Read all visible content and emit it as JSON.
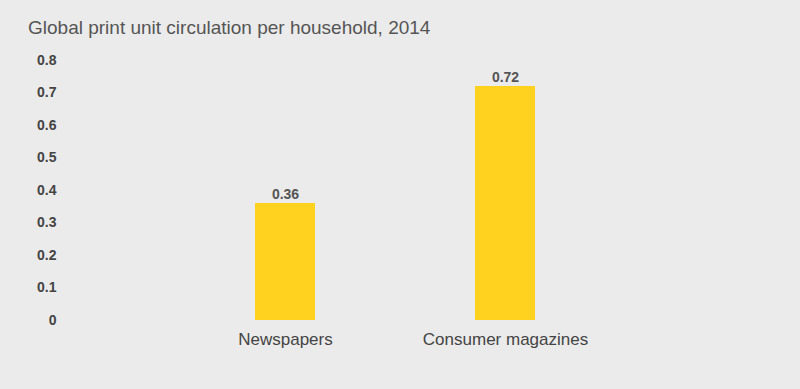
{
  "chart_data": {
    "type": "bar",
    "title": "Global print unit circulation per household, 2014",
    "categories": [
      "Newspapers",
      "Consumer magazines"
    ],
    "values": [
      0.36,
      0.72
    ],
    "color": "#ffd21f",
    "ylim": [
      0,
      0.8
    ],
    "yticks": [
      0,
      0.1,
      0.2,
      0.3,
      0.4,
      0.5,
      0.6,
      0.7,
      0.8
    ],
    "grid": false,
    "data_labels": true
  }
}
